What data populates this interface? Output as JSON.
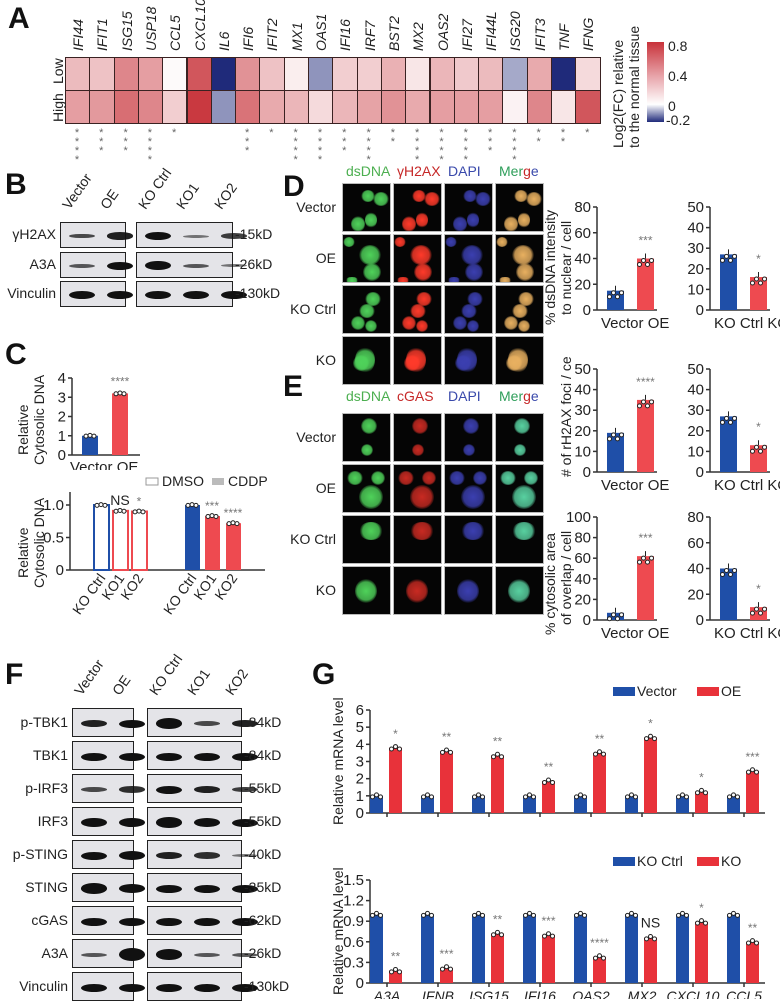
{
  "panels": {
    "A": {
      "letter": "A",
      "rows": [
        "Low",
        "High"
      ],
      "genes": [
        "IFI44",
        "IFIT1",
        "ISG15",
        "USP18",
        "CCL5",
        "CXCL10",
        "IL6",
        "IFI6",
        "IFIT2",
        "MX1",
        "OAS1",
        "IFI16",
        "IRF7",
        "BST2",
        "MX2",
        "OAS2",
        "IFI27",
        "IFI44L",
        "ISG20",
        "IFIT3",
        "TNF",
        "IFNG"
      ],
      "significance": [
        "****",
        "***",
        "***",
        "****",
        "*",
        "",
        "",
        "***",
        "*",
        "****",
        "****",
        "***",
        "****",
        "**",
        "****",
        "****",
        "****",
        "***",
        "****",
        "**",
        "**",
        "*"
      ],
      "colorbar": {
        "title_line1": "Log2(FC) relative",
        "title_line2": "to the normal tissue",
        "ticks": [
          "0.8",
          "0.4",
          "0",
          "-0.2"
        ],
        "colors": {
          "high": "#c8323a",
          "mid": "#ffffff",
          "low": "#1f2a7a"
        }
      }
    },
    "B": {
      "letter": "B",
      "lanes_left": [
        "Vector",
        "OE"
      ],
      "lanes_right": [
        "KO Ctrl",
        "KO1",
        "KO2"
      ],
      "rows": [
        {
          "label": "γH2AX",
          "kd": "15kD"
        },
        {
          "label": "A3A",
          "kd": "26kD"
        },
        {
          "label": "Vinculin",
          "kd": "130kD"
        }
      ]
    },
    "C": {
      "letter": "C",
      "top": {
        "ylabel_line1": "Relative",
        "ylabel_line2": "Cytosolic DNA",
        "yticks": [
          "0",
          "1",
          "2",
          "3",
          "4"
        ],
        "xlabels": [
          "Vector",
          "OE"
        ],
        "sig": "****"
      },
      "bottom": {
        "ylabel_line1": "Relative",
        "ylabel_line2": "Cytosolic DNA",
        "yticks": [
          "0",
          "0.5",
          "1.0"
        ],
        "legend": [
          "DMSO",
          "CDDP"
        ],
        "xlabels": [
          "KO Ctrl",
          "KO1",
          "KO2",
          "KO Ctrl",
          "KO1",
          "KO2"
        ],
        "sig": [
          "",
          "NS",
          "*",
          "",
          "***",
          "****"
        ]
      }
    },
    "D": {
      "letter": "D",
      "channels": [
        "dsDNA",
        "γH2AX",
        "DAPI",
        "Merge"
      ],
      "rows": [
        "Vector",
        "OE",
        "KO Ctrl",
        "KO"
      ],
      "chart_ylabel_line1": "% dsDNA intensity",
      "chart_ylabel_line2": "to nuclear / cell"
    },
    "E": {
      "letter": "E",
      "channels": [
        "dsDNA",
        "cGAS",
        "DAPI",
        "Merge"
      ],
      "rows": [
        "Vector",
        "OE",
        "KO Ctrl",
        "KO"
      ],
      "foci_ylabel": "# of rH2AX foci / cell",
      "overlap_ylabel_line1": "% cytosolic area",
      "overlap_ylabel_line2": "of overlap / cell"
    },
    "F": {
      "letter": "F",
      "lanes_left": [
        "Vector",
        "OE"
      ],
      "lanes_right": [
        "KO Ctrl",
        "KO1",
        "KO2"
      ],
      "rows": [
        {
          "label": "p-TBK1",
          "kd": "84kD"
        },
        {
          "label": "TBK1",
          "kd": "84kD"
        },
        {
          "label": "p-IRF3",
          "kd": "55kD"
        },
        {
          "label": "IRF3",
          "kd": "55kD"
        },
        {
          "label": "p-STING",
          "kd": "40kD"
        },
        {
          "label": "STING",
          "kd": "35kD"
        },
        {
          "label": "cGAS",
          "kd": "62kD"
        },
        {
          "label": "A3A",
          "kd": "26kD"
        },
        {
          "label": "Vinculin",
          "kd": "130kD"
        }
      ]
    },
    "G": {
      "letter": "G",
      "ylabel": "Relative mRNA level",
      "top_legend": [
        "Vector",
        "OE"
      ],
      "bottom_legend": [
        "KO Ctrl",
        "KO"
      ],
      "genes": [
        "A3A",
        "IFNB",
        "ISG15",
        "IFI16",
        "OAS2",
        "MX2",
        "CXCL10",
        "CCL5"
      ]
    }
  },
  "colors": {
    "blue": "#1f4fa8",
    "red": "#e8323a",
    "red_light": "#ee4a50",
    "sig_gray": "#777777"
  },
  "chart_data": [
    {
      "id": "A-heatmap",
      "type": "heatmap",
      "title": "",
      "x": [
        "IFI44",
        "IFIT1",
        "ISG15",
        "USP18",
        "CCL5",
        "CXCL10",
        "IL6",
        "IFI6",
        "IFIT2",
        "MX1",
        "OAS1",
        "IFI16",
        "IRF7",
        "BST2",
        "MX2",
        "OAS2",
        "IFI27",
        "IFI44L",
        "ISG20",
        "IFIT3",
        "TNF",
        "IFNG"
      ],
      "y": [
        "Low",
        "High"
      ],
      "values": [
        [
          0.28,
          0.25,
          0.5,
          0.4,
          0.02,
          0.7,
          -0.2,
          0.45,
          0.25,
          0.07,
          -0.1,
          0.2,
          0.2,
          0.32,
          0.1,
          0.3,
          0.22,
          0.28,
          -0.08,
          0.35,
          -0.2,
          0.15
        ],
        [
          0.4,
          0.42,
          0.6,
          0.5,
          0.2,
          0.82,
          -0.1,
          0.58,
          0.35,
          0.3,
          0.15,
          0.3,
          0.38,
          0.45,
          0.35,
          0.4,
          0.4,
          0.4,
          0.05,
          0.5,
          0.1,
          0.7
        ]
      ],
      "colorbar_label": "Log2(FC) relative to the normal tissue",
      "range": [
        -0.2,
        0.8
      ]
    },
    {
      "id": "C-top",
      "type": "bar",
      "categories": [
        "Vector",
        "OE"
      ],
      "values": [
        1.0,
        3.2
      ],
      "ylabel": "Relative Cytosolic DNA",
      "ylim": [
        0,
        4
      ],
      "annotations": [
        "",
        "****"
      ]
    },
    {
      "id": "C-bottom",
      "type": "bar",
      "categories": [
        "KO Ctrl",
        "KO1",
        "KO2",
        "KO Ctrl",
        "KO1",
        "KO2"
      ],
      "series": [
        {
          "name": "DMSO",
          "values": [
            1.0,
            0.91,
            0.9,
            null,
            null,
            null
          ]
        },
        {
          "name": "CDDP",
          "values": [
            null,
            null,
            null,
            1.0,
            0.83,
            0.72
          ]
        }
      ],
      "ylabel": "Relative Cytosolic DNA",
      "ylim": [
        0,
        1.2
      ],
      "legend": [
        "DMSO",
        "CDDP"
      ],
      "annotations": [
        "",
        "NS",
        "*",
        "",
        "***",
        "****"
      ]
    },
    {
      "id": "D-dsDNA-OE",
      "type": "bar",
      "categories": [
        "Vector",
        "OE"
      ],
      "values": [
        15,
        40
      ],
      "ylabel": "% dsDNA intensity to nuclear / cell",
      "ylim": [
        0,
        80
      ],
      "annotations": [
        "",
        "***"
      ]
    },
    {
      "id": "D-dsDNA-KO",
      "type": "bar",
      "categories": [
        "KO Ctrl",
        "KO"
      ],
      "values": [
        27,
        16
      ],
      "ylim": [
        0,
        50
      ],
      "annotations": [
        "",
        "*"
      ]
    },
    {
      "id": "D-foci-OE",
      "type": "bar",
      "categories": [
        "Vector",
        "OE"
      ],
      "values": [
        19,
        35
      ],
      "ylabel": "# of rH2AX foci / cell",
      "ylim": [
        0,
        50
      ],
      "annotations": [
        "",
        "****"
      ]
    },
    {
      "id": "D-foci-KO",
      "type": "bar",
      "categories": [
        "KO Ctrl",
        "KO"
      ],
      "values": [
        27,
        13
      ],
      "ylim": [
        0,
        50
      ],
      "annotations": [
        "",
        "*"
      ]
    },
    {
      "id": "E-overlap-OE",
      "type": "bar",
      "categories": [
        "Vector",
        "OE"
      ],
      "values": [
        7,
        62
      ],
      "ylabel": "% cytosolic area of overlap / cell",
      "ylim": [
        0,
        100
      ],
      "annotations": [
        "",
        "***"
      ]
    },
    {
      "id": "E-overlap-KO",
      "type": "bar",
      "categories": [
        "KO Ctrl",
        "KO"
      ],
      "values": [
        40,
        10
      ],
      "ylim": [
        0,
        80
      ],
      "annotations": [
        "",
        "*"
      ]
    },
    {
      "id": "G-top",
      "type": "bar",
      "categories": [
        "A3A",
        "IFNB",
        "ISG15",
        "IFI16",
        "OAS2",
        "MX2",
        "CXCL10",
        "CCL5"
      ],
      "series": [
        {
          "name": "Vector",
          "values": [
            1.0,
            1.0,
            1.0,
            1.0,
            1.0,
            1.0,
            1.0,
            1.0
          ]
        },
        {
          "name": "OE",
          "values": [
            3.8,
            3.6,
            3.35,
            1.85,
            3.5,
            4.4,
            1.25,
            2.45
          ]
        }
      ],
      "ylabel": "Relative mRNA level",
      "ylim": [
        0,
        6
      ],
      "yticks": [
        0,
        1,
        2,
        3,
        4,
        5,
        6
      ],
      "annotations": [
        "*",
        "**",
        "**",
        "**",
        "**",
        "*",
        "*",
        "***"
      ],
      "legend_position": "top-right"
    },
    {
      "id": "G-bottom",
      "type": "bar",
      "categories": [
        "A3A",
        "IFNB",
        "ISG15",
        "IFI16",
        "OAS2",
        "MX2",
        "CXCL10",
        "CCL5"
      ],
      "series": [
        {
          "name": "KO Ctrl",
          "values": [
            1.0,
            1.0,
            1.0,
            1.0,
            1.0,
            1.0,
            1.0,
            1.0
          ]
        },
        {
          "name": "KO",
          "values": [
            0.18,
            0.22,
            0.72,
            0.7,
            0.38,
            0.66,
            0.89,
            0.6
          ]
        }
      ],
      "ylabel": "Relative mRNA level",
      "ylim": [
        0,
        1.5
      ],
      "yticks": [
        0,
        0.3,
        0.6,
        0.9,
        1.2,
        1.5
      ],
      "annotations": [
        "**",
        "***",
        "**",
        "***",
        "****",
        "NS",
        "*",
        "**"
      ],
      "legend_position": "top-right"
    }
  ]
}
